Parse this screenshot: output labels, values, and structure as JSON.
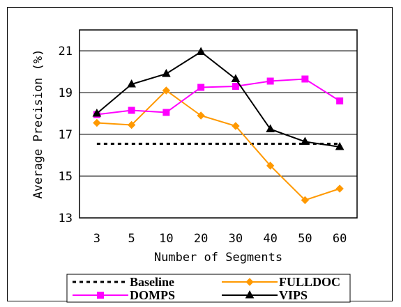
{
  "chart_data": {
    "type": "line",
    "categories": [
      "3",
      "5",
      "10",
      "20",
      "30",
      "40",
      "50",
      "60"
    ],
    "xlabel": "Number of Segments",
    "ylabel": "Average Precision (%)",
    "ylim": [
      13,
      22
    ],
    "yticks": [
      13,
      15,
      17,
      19,
      21
    ],
    "grid": "horizontal",
    "legend_position": "bottom",
    "series": [
      {
        "name": "Baseline",
        "color": "#000000",
        "style": "dotted",
        "marker": "none",
        "values": [
          16.55,
          16.55,
          16.55,
          16.55,
          16.55,
          16.55,
          16.55,
          16.55
        ]
      },
      {
        "name": "FULLDOC",
        "color": "#FF9900",
        "style": "solid",
        "marker": "diamond",
        "values": [
          17.55,
          17.45,
          19.1,
          17.9,
          17.4,
          15.5,
          13.85,
          14.4
        ]
      },
      {
        "name": "DOMPS",
        "color": "#FF00FF",
        "style": "solid",
        "marker": "square",
        "values": [
          17.95,
          18.15,
          18.05,
          19.25,
          19.3,
          19.55,
          19.65,
          18.6
        ]
      },
      {
        "name": "VIPS",
        "color": "#000000",
        "style": "solid",
        "marker": "triangle",
        "values": [
          18.0,
          19.4,
          19.9,
          20.95,
          19.65,
          17.25,
          16.65,
          16.4
        ]
      }
    ]
  }
}
